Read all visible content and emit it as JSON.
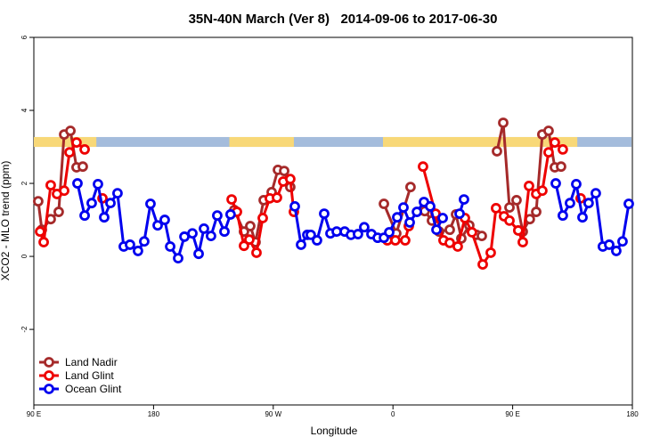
{
  "chart_data": {
    "type": "line",
    "title": "35N-40N March (Ver 8)   2014-09-06 to 2017-06-30",
    "x_label": "Longitude",
    "y_label": "XCO2 - MLO trend (ppm)",
    "xlim": [
      90,
      540
    ],
    "ylim": [
      -4.07,
      6
    ],
    "xticks": [
      {
        "value": 90,
        "label": "90 E"
      },
      180,
      {
        "value": 270,
        "label": "90 W"
      },
      {
        "value": 360,
        "label": "0"
      },
      {
        "value": 450,
        "label": "90 E"
      },
      {
        "value": 540,
        "label": "180"
      }
    ],
    "yticks": [
      -2,
      0,
      2,
      4,
      6
    ],
    "legend": "bottom-left",
    "surface_band": {
      "ylim": [
        3.0,
        3.27
      ],
      "land_color": "#f8d878",
      "ocean_color": "#a4bcdc",
      "land": [
        [
          90,
          137
        ],
        [
          237,
          285.5
        ],
        [
          352.5,
          498.6
        ]
      ]
    },
    "series": [
      {
        "name": "Land Nadir",
        "color": "#a52a2a",
        "x": [
          93.3,
          96.0,
          102.7,
          108.7,
          112.8,
          117.5,
          122.1,
          126.8,
          null,
          240.7,
          248.0,
          252.7,
          256.7,
          262.8,
          268.8,
          273.5,
          278.2,
          282.8,
          null,
          353.2,
          362.5,
          373.2,
          null,
          383.9,
          389.3,
          394.7,
          402.7,
          407.4,
          411.4,
          417.4,
          422.8,
          426.8,
          null,
          438.2,
          442.9,
          447.6,
          452.9,
          457.6,
          462.9,
          467.7,
          472.3,
          477.0,
          481.7,
          486.4
        ],
        "values": [
          1.51,
          0.73,
          1.02,
          1.22,
          3.34,
          3.44,
          2.44,
          2.46,
          null,
          1.27,
          0.68,
          0.83,
          0.39,
          1.54,
          1.76,
          2.37,
          2.34,
          1.9,
          null,
          1.44,
          0.63,
          1.9,
          null,
          1.24,
          0.98,
          0.68,
          0.73,
          1.15,
          0.49,
          0.85,
          0.59,
          0.56,
          null,
          2.88,
          3.66,
          1.34,
          1.54,
          0.68,
          1.02,
          1.22,
          3.34,
          3.44,
          2.44,
          2.46
        ]
      },
      {
        "name": "Land Glint",
        "color": "#ee0000",
        "x": [
          94.7,
          97.4,
          102.7,
          107.4,
          112.8,
          116.8,
          122.1,
          128.2,
          null,
          141.6,
          null,
          238.7,
          242.7,
          248.0,
          252.0,
          257.4,
          262.1,
          267.4,
          272.8,
          277.5,
          282.8,
          285.5,
          null,
          355.8,
          361.8,
          369.2,
          371.9,
          null,
          382.6,
          392.0,
          398.0,
          402.7,
          408.7,
          414.1,
          419.4,
          427.5,
          433.5,
          437.5,
          443.5,
          447.6,
          454.2,
          457.6,
          462.3,
          467.7,
          472.3,
          477.0,
          481.7,
          487.7,
          null,
          501.1
        ],
        "values": [
          0.68,
          0.39,
          1.95,
          1.71,
          1.8,
          2.85,
          3.12,
          2.93,
          null,
          1.59,
          null,
          1.56,
          1.22,
          0.29,
          0.46,
          0.1,
          1.05,
          1.59,
          1.61,
          2.05,
          2.12,
          1.22,
          null,
          0.44,
          0.44,
          0.44,
          0.83,
          null,
          2.46,
          1.17,
          0.44,
          0.37,
          0.27,
          1.05,
          0.66,
          -0.22,
          0.1,
          1.32,
          1.1,
          0.98,
          0.71,
          0.39,
          1.93,
          1.71,
          1.8,
          2.85,
          3.12,
          2.93,
          null,
          1.59
        ]
      },
      {
        "name": "Ocean Glint",
        "color": "#0000ee",
        "x": [
          122.8,
          128.2,
          133.5,
          138.2,
          142.9,
          147.6,
          152.9,
          157.6,
          162.3,
          168.3,
          173.0,
          177.7,
          183.1,
          188.4,
          192.5,
          198.5,
          203.2,
          209.2,
          213.9,
          217.9,
          223.2,
          227.9,
          233.3,
          237.9,
          null,
          286.2,
          290.9,
          295.6,
          298.2,
          302.9,
          308.3,
          313.0,
          317.7,
          323.7,
          328.4,
          333.7,
          338.4,
          343.8,
          348.5,
          353.2,
          357.2,
          363.2,
          367.9,
          372.6,
          378.0,
          383.3,
          388.0,
          392.7,
          397.4,
          null,
          410.1,
          413.4,
          null,
          482.4,
          487.7,
          493.1,
          497.8,
          502.5,
          507.1,
          512.5,
          517.8,
          522.6,
          527.9,
          532.6,
          537.3
        ],
        "values": [
          2.0,
          1.12,
          1.46,
          1.98,
          1.07,
          1.46,
          1.73,
          0.27,
          0.32,
          0.15,
          0.41,
          1.44,
          0.85,
          1.0,
          0.27,
          -0.05,
          0.54,
          0.63,
          0.07,
          0.76,
          0.56,
          1.12,
          0.68,
          1.15,
          null,
          1.37,
          0.32,
          0.59,
          0.59,
          0.44,
          1.17,
          0.63,
          0.68,
          0.68,
          0.59,
          0.61,
          0.8,
          0.61,
          0.51,
          0.51,
          0.66,
          1.07,
          1.34,
          0.93,
          1.22,
          1.49,
          1.37,
          0.73,
          1.05,
          null,
          1.17,
          1.56,
          null,
          2.0,
          1.12,
          1.46,
          1.98,
          1.07,
          1.46,
          1.73,
          0.27,
          0.32,
          0.15,
          0.41,
          1.44
        ]
      }
    ]
  }
}
